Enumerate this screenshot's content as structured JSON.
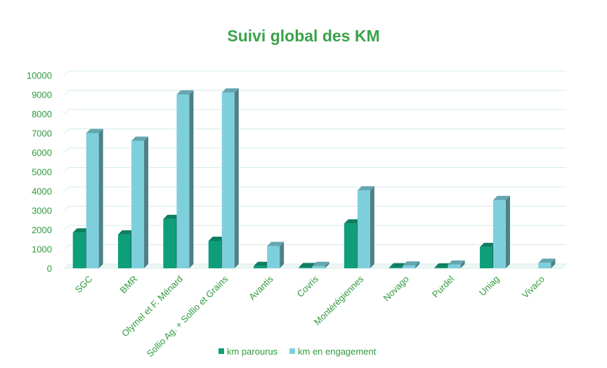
{
  "chart_data": {
    "type": "bar",
    "title": "Suivi global des KM",
    "xlabel": "",
    "ylabel": "",
    "ylim": [
      0,
      10000
    ],
    "yticks": [
      0,
      1000,
      2000,
      3000,
      4000,
      5000,
      6000,
      7000,
      8000,
      9000,
      10000
    ],
    "categories": [
      "SGC",
      "BMR",
      "Olymel et F. Ménard",
      "Sollio Ag. + Sollio et Grains",
      "Avantis",
      "Covris",
      "Montérégiennes",
      "Novago",
      "Purdel",
      "Uniag",
      "Vivaco"
    ],
    "series": [
      {
        "name": "km parourus",
        "color": "#0f9e7a",
        "values": [
          1850,
          1750,
          2550,
          1420,
          120,
          60,
          2320,
          50,
          40,
          1100,
          0
        ]
      },
      {
        "name": "km en engagement",
        "color": "#7ecfdc",
        "values": [
          7000,
          6600,
          9000,
          9100,
          1150,
          120,
          4030,
          140,
          190,
          3530,
          280
        ]
      }
    ],
    "grid": true,
    "legend": "bottom"
  }
}
